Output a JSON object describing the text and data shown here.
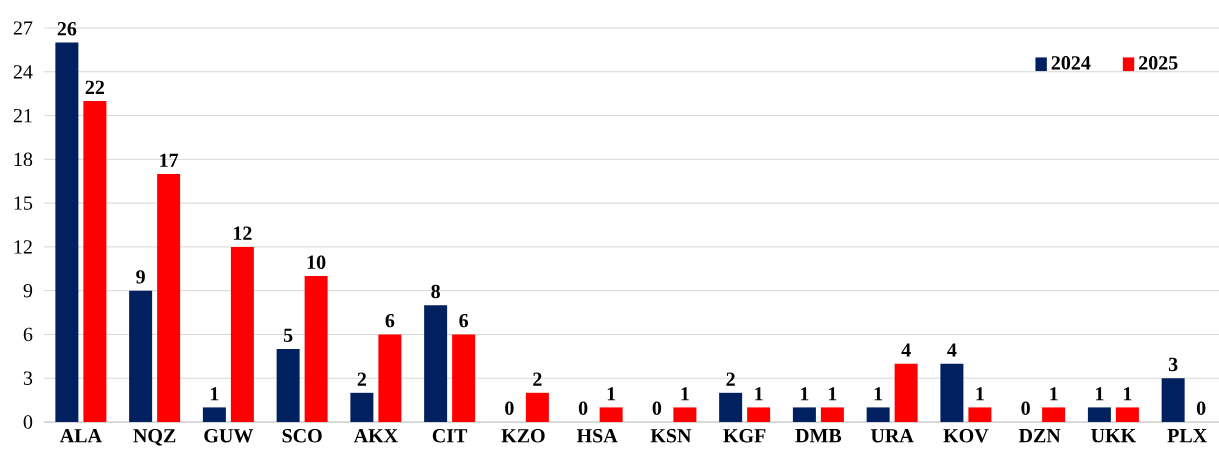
{
  "chart_data": {
    "type": "bar",
    "categories": [
      "ALA",
      "NQZ",
      "GUW",
      "SCO",
      "AKX",
      "CIT",
      "KZO",
      "HSA",
      "KSN",
      "KGF",
      "DMB",
      "URA",
      "KOV",
      "DZN",
      "UKK",
      "PLX"
    ],
    "series": [
      {
        "name": "2024",
        "color": "#002060",
        "values": [
          26,
          9,
          1,
          5,
          2,
          8,
          0,
          0,
          0,
          2,
          1,
          1,
          4,
          0,
          1,
          3
        ]
      },
      {
        "name": "2025",
        "color": "#ff0000",
        "values": [
          22,
          17,
          12,
          10,
          6,
          6,
          2,
          1,
          1,
          1,
          1,
          4,
          1,
          1,
          1,
          0
        ]
      }
    ],
    "ylim": [
      0,
      27
    ],
    "yticks": [
      0,
      3,
      6,
      9,
      12,
      15,
      18,
      21,
      24,
      27
    ],
    "grid": "y",
    "legend": "top right",
    "data_labels": true
  }
}
